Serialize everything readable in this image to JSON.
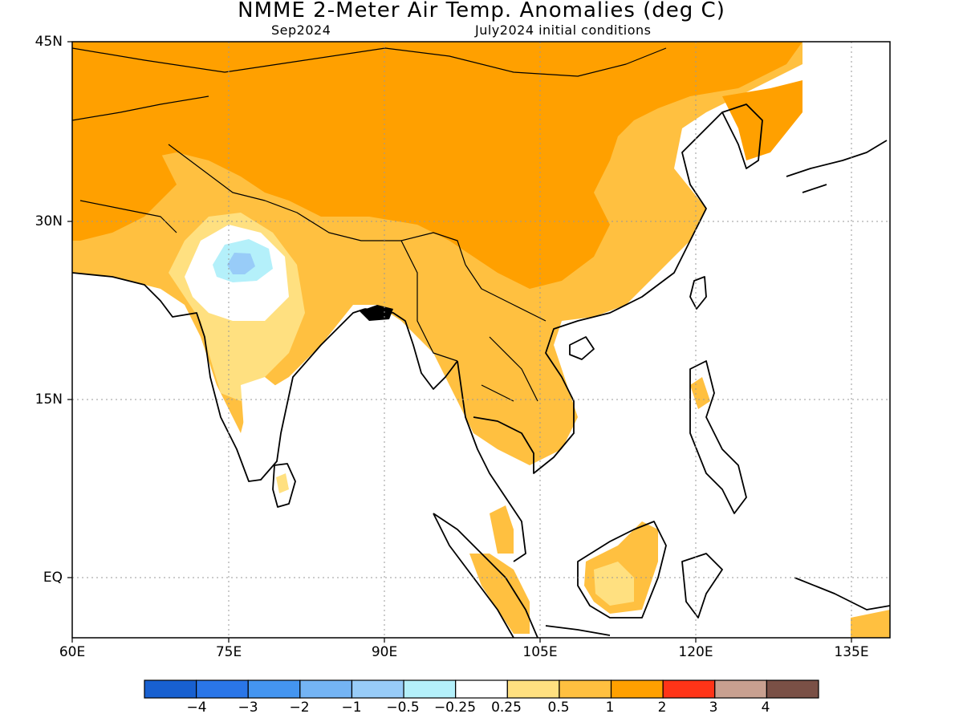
{
  "title": "NMME 2-Meter Air Temp. Anomalies (deg C)",
  "subtitle_left": "Sep2024",
  "subtitle_right": "July2024 initial conditions",
  "map": {
    "lat_ticks": [
      "45N",
      "30N",
      "15N",
      "EQ"
    ],
    "lon_ticks": [
      "60E",
      "75E",
      "90E",
      "105E",
      "120E",
      "135E"
    ],
    "gridlines": "dotted"
  },
  "colorbar": {
    "labels": [
      "−4",
      "−3",
      "−2",
      "−1",
      "−0.5",
      "−0.25",
      "0.25",
      "0.5",
      "1",
      "2",
      "3",
      "4"
    ],
    "colors": [
      "#1860d0",
      "#2a76e8",
      "#4495f0",
      "#74b4f4",
      "#98ccf8",
      "#b4f0fa",
      "#ffffff",
      "#ffe080",
      "#ffc040",
      "#ffa000",
      "#ff3418",
      "#c8a090",
      "#7a5046"
    ]
  },
  "colors": {
    "anom_0_5_1": "#ffc040",
    "anom_1_2": "#ffa000",
    "anom_0_25_0_5": "#ffe080",
    "anom_neg_0_5_neg_0_25": "#b4f0fa",
    "anom_neg_1_neg_0_5": "#98ccf8",
    "coastline": "#000000"
  }
}
